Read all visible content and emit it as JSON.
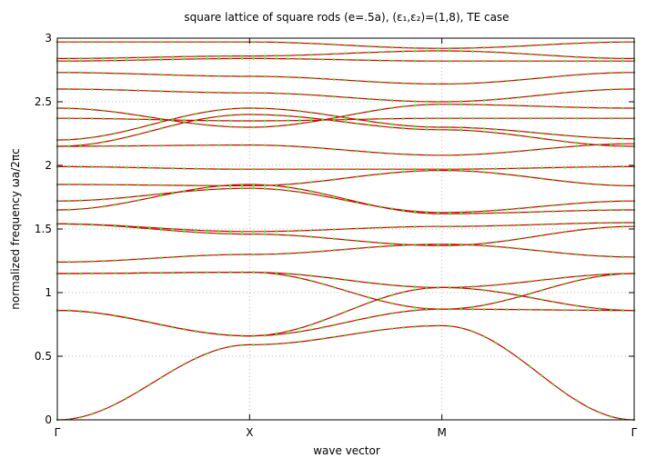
{
  "chart_data": {
    "type": "line",
    "title": "square lattice of square rods (e=.5a), (ε₁,ε₂)=(1,8), TE case",
    "xlabel": "wave vector",
    "ylabel": "normalized frequency ωa/2πc",
    "ylim": [
      0,
      3
    ],
    "grid": true,
    "legend": "none",
    "x_ticks": [
      "Γ",
      "X",
      "M",
      "Γ"
    ],
    "y_ticks": [
      "0",
      "0.5",
      "1",
      "1.5",
      "2",
      "2.5",
      "3"
    ],
    "x": [
      0,
      1,
      2,
      3
    ],
    "colors": {
      "line": "#cc0000",
      "dots": "#55dd22",
      "grid": "#b8b8b8"
    },
    "series": [
      {
        "values": [
          0.0,
          0.59,
          0.74,
          0.0
        ]
      },
      {
        "values": [
          0.86,
          0.66,
          0.87,
          0.86
        ]
      },
      {
        "values": [
          0.86,
          0.66,
          1.04,
          0.86
        ]
      },
      {
        "values": [
          1.15,
          1.16,
          0.87,
          1.15
        ]
      },
      {
        "values": [
          1.15,
          1.16,
          1.04,
          1.15
        ]
      },
      {
        "values": [
          1.24,
          1.3,
          1.38,
          1.28
        ]
      },
      {
        "values": [
          1.54,
          1.46,
          1.37,
          1.52
        ]
      },
      {
        "values": [
          1.54,
          1.48,
          1.52,
          1.55
        ]
      },
      {
        "values": [
          1.65,
          1.85,
          1.62,
          1.65
        ]
      },
      {
        "values": [
          1.72,
          1.82,
          1.63,
          1.72
        ]
      },
      {
        "values": [
          1.85,
          1.84,
          1.96,
          1.84
        ]
      },
      {
        "values": [
          1.99,
          1.97,
          1.97,
          1.99
        ]
      },
      {
        "values": [
          2.15,
          2.16,
          2.08,
          2.17
        ]
      },
      {
        "values": [
          2.15,
          2.4,
          2.28,
          2.15
        ]
      },
      {
        "values": [
          2.2,
          2.45,
          2.3,
          2.21
        ]
      },
      {
        "values": [
          2.37,
          2.35,
          2.37,
          2.37
        ]
      },
      {
        "values": [
          2.45,
          2.3,
          2.48,
          2.45
        ]
      },
      {
        "values": [
          2.6,
          2.57,
          2.5,
          2.6
        ]
      },
      {
        "values": [
          2.73,
          2.7,
          2.64,
          2.73
        ]
      },
      {
        "values": [
          2.82,
          2.84,
          2.82,
          2.82
        ]
      },
      {
        "values": [
          2.84,
          2.86,
          2.9,
          2.84
        ]
      },
      {
        "values": [
          2.97,
          2.97,
          2.92,
          2.97
        ]
      }
    ]
  }
}
